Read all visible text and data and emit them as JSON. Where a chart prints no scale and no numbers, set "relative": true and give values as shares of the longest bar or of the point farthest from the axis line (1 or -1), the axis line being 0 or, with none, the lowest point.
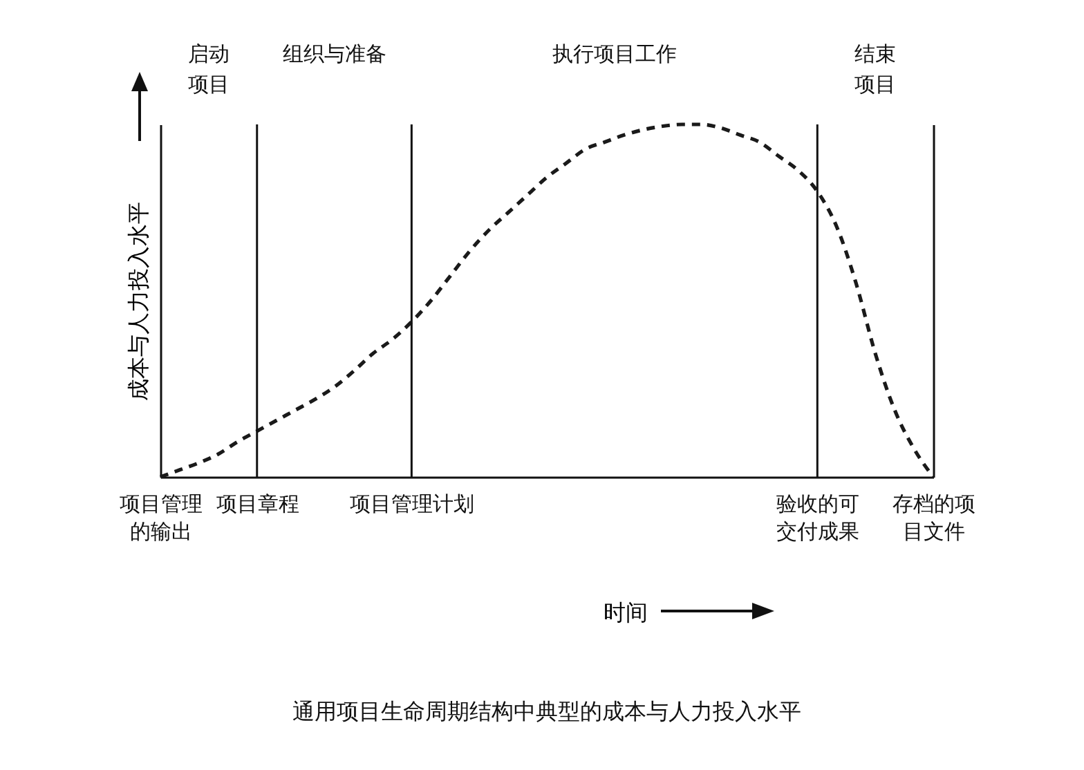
{
  "chart_data": {
    "type": "line",
    "relative": true,
    "title": "通用项目生命周期结构中典型的成本与人力投入水平",
    "xlabel": "时间",
    "ylabel": "成本与人力投入水平",
    "line_style": "dashed",
    "categories": [
      "项目管理的输出",
      null,
      null,
      null,
      null,
      "项目章程",
      null,
      null,
      null,
      null,
      null,
      null,
      null,
      "项目管理计划",
      null,
      null,
      null,
      null,
      null,
      null,
      null,
      null,
      null,
      null,
      null,
      null,
      null,
      null,
      null,
      null,
      null,
      null,
      null,
      null,
      "验收的可交付成果",
      null,
      null,
      null,
      null,
      null,
      "存档的项目文件"
    ],
    "series": [
      {
        "color": "#1a1a1a",
        "values": [
          0,
          0.02,
          0.04,
          0.065,
          0.1,
          0.13,
          0.16,
          0.19,
          0.22,
          0.255,
          0.3,
          0.35,
          0.39,
          0.44,
          0.5,
          0.57,
          0.64,
          0.7,
          0.75,
          0.8,
          0.85,
          0.89,
          0.93,
          0.95,
          0.97,
          0.985,
          0.995,
          1,
          1,
          0.99,
          0.97,
          0.95,
          0.91,
          0.87,
          0.81,
          0.71,
          0.55,
          0.35,
          0.19,
          0.08,
          0
        ]
      }
    ],
    "ref_lines": [
      {
        "axis": "x",
        "value": "项目章程"
      },
      {
        "axis": "x",
        "value": "项目管理计划"
      },
      {
        "axis": "x",
        "value": "验收的可交付成果"
      }
    ],
    "annotations": [
      "启动项目",
      "组织与准备",
      "执行项目工作",
      "结束项目"
    ]
  }
}
